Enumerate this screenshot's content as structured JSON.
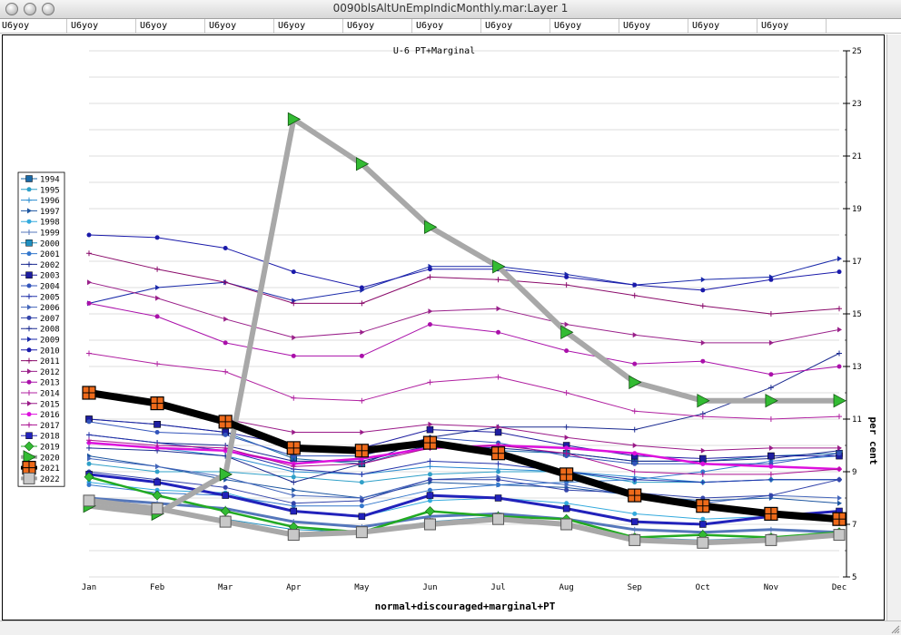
{
  "window": {
    "title": "0090blsAltUnEmpIndicMonthly.mar:Layer 1"
  },
  "tabs": [
    "U6yoy",
    "U6yoy",
    "U6yoy",
    "U6yoy",
    "U6yoy",
    "U6yoy",
    "U6yoy",
    "U6yoy",
    "U6yoy",
    "U6yoy",
    "U6yoy",
    "U6yoy"
  ],
  "chart_data": {
    "type": "line",
    "title": "U-6 PT+Marginal",
    "xlabel": "normal+discouraged+marginal+PT",
    "ylabel": "per cent",
    "categories": [
      "Jan",
      "Feb",
      "Mar",
      "Apr",
      "May",
      "Jun",
      "Jul",
      "Aug",
      "Sep",
      "Oct",
      "Nov",
      "Dec"
    ],
    "yticks": [
      5,
      7,
      9,
      11,
      13,
      15,
      17,
      19,
      21,
      23,
      25
    ],
    "ylim": [
      5,
      25
    ],
    "grid": true,
    "legend_position": "left",
    "series": [
      {
        "name": "1994",
        "color": "#1a6aa8",
        "values": [
          11.0,
          10.8,
          10.5,
          9.5,
          9.3,
          10.0,
          9.8,
          9.7,
          9.4,
          9.4,
          9.6,
          9.7
        ]
      },
      {
        "name": "1995",
        "color": "#2fa0c8",
        "values": [
          9.3,
          9.0,
          9.0,
          8.8,
          8.6,
          8.9,
          9.0,
          9.0,
          8.6,
          8.6,
          8.7,
          8.7
        ]
      },
      {
        "name": "1996",
        "color": "#2a8cd0",
        "values": [
          10.1,
          9.9,
          9.6,
          9.0,
          8.9,
          9.2,
          9.1,
          9.0,
          8.8,
          8.6,
          8.7,
          8.7
        ]
      },
      {
        "name": "1997",
        "color": "#1c55a0",
        "values": [
          9.6,
          9.2,
          8.7,
          8.3,
          8.0,
          8.6,
          8.5,
          8.4,
          8.1,
          7.9,
          8.0,
          7.8
        ]
      },
      {
        "name": "1998",
        "color": "#33aadd",
        "values": [
          8.6,
          8.3,
          8.2,
          7.5,
          7.3,
          7.9,
          8.0,
          7.8,
          7.4,
          7.2,
          7.3,
          7.3
        ]
      },
      {
        "name": "1999",
        "color": "#5577bb",
        "values": [
          8.0,
          7.8,
          7.6,
          7.1,
          6.9,
          7.3,
          7.4,
          7.2,
          6.8,
          6.7,
          6.8,
          6.7
        ]
      },
      {
        "name": "2000",
        "color": "#1f8fc0",
        "values": [
          7.9,
          7.6,
          7.2,
          6.8,
          6.7,
          7.1,
          7.3,
          7.0,
          6.5,
          6.4,
          6.5,
          6.6
        ]
      },
      {
        "name": "2001",
        "color": "#3377cc",
        "values": [
          8.5,
          8.2,
          8.1,
          7.7,
          7.7,
          8.3,
          8.5,
          8.6,
          8.7,
          9.0,
          9.4,
          9.6
        ]
      },
      {
        "name": "2002",
        "color": "#1a2a90",
        "values": [
          10.4,
          10.1,
          10.0,
          9.4,
          9.4,
          10.0,
          9.9,
          9.7,
          9.4,
          9.4,
          9.5,
          9.8
        ]
      },
      {
        "name": "2003",
        "color": "#1d1da0",
        "values": [
          11.0,
          10.8,
          10.5,
          10.0,
          9.9,
          10.6,
          10.5,
          10.0,
          9.6,
          9.5,
          9.6,
          9.6
        ]
      },
      {
        "name": "2004",
        "color": "#3355bb",
        "values": [
          10.9,
          10.5,
          10.4,
          9.6,
          9.6,
          10.3,
          10.1,
          9.6,
          9.3,
          9.3,
          9.3,
          9.7
        ]
      },
      {
        "name": "2005",
        "color": "#2233aa",
        "values": [
          10.4,
          10.1,
          9.8,
          9.1,
          8.9,
          9.4,
          9.3,
          9.0,
          8.7,
          8.6,
          8.7,
          8.7
        ]
      },
      {
        "name": "2006",
        "color": "#4466bb",
        "values": [
          9.5,
          9.2,
          8.8,
          8.1,
          8.0,
          8.7,
          8.8,
          8.5,
          8.1,
          7.8,
          8.1,
          8.0
        ]
      },
      {
        "name": "2007",
        "color": "#3344aa",
        "values": [
          9.0,
          8.7,
          8.4,
          7.8,
          7.9,
          8.7,
          8.7,
          8.3,
          8.2,
          8.0,
          8.1,
          8.7
        ]
      },
      {
        "name": "2008",
        "color": "#1a2a90",
        "values": [
          9.9,
          9.8,
          9.6,
          8.6,
          9.3,
          10.3,
          10.7,
          10.7,
          10.6,
          11.2,
          12.2,
          13.5
        ]
      },
      {
        "name": "2009",
        "color": "#1a2aaa",
        "values": [
          15.4,
          16.0,
          16.2,
          15.5,
          15.9,
          16.8,
          16.8,
          16.5,
          16.1,
          16.3,
          16.4,
          17.1
        ]
      },
      {
        "name": "2010",
        "color": "#1a1aaa",
        "values": [
          18.0,
          17.9,
          17.5,
          16.6,
          16.0,
          16.7,
          16.7,
          16.4,
          16.1,
          15.9,
          16.3,
          16.6
        ]
      },
      {
        "name": "2011",
        "color": "#8a0a6a",
        "values": [
          17.3,
          16.7,
          16.2,
          15.4,
          15.4,
          16.4,
          16.3,
          16.1,
          15.7,
          15.3,
          15.0,
          15.2
        ]
      },
      {
        "name": "2012",
        "color": "#9a208a",
        "values": [
          16.2,
          15.6,
          14.8,
          14.1,
          14.3,
          15.1,
          15.2,
          14.6,
          14.2,
          13.9,
          13.9,
          14.4
        ]
      },
      {
        "name": "2013",
        "color": "#aa10aa",
        "values": [
          15.4,
          14.9,
          13.9,
          13.4,
          13.4,
          14.6,
          14.3,
          13.6,
          13.1,
          13.2,
          12.7,
          13.0
        ]
      },
      {
        "name": "2014",
        "color": "#b020a0",
        "values": [
          13.5,
          13.1,
          12.8,
          11.8,
          11.7,
          12.4,
          12.6,
          12.0,
          11.3,
          11.1,
          11.0,
          11.1
        ]
      },
      {
        "name": "2015",
        "color": "#9a1a88",
        "values": [
          12.0,
          11.5,
          11.0,
          10.5,
          10.5,
          10.8,
          10.7,
          10.3,
          10.0,
          9.8,
          9.9,
          9.9
        ]
      },
      {
        "name": "2016",
        "color": "#dd10dd",
        "values": [
          10.1,
          9.9,
          9.8,
          9.3,
          9.5,
          9.9,
          10.0,
          9.9,
          9.7,
          9.3,
          9.2,
          9.1
        ]
      },
      {
        "name": "2017",
        "color": "#aa1090",
        "values": [
          10.2,
          10.0,
          9.9,
          9.2,
          9.3,
          9.9,
          10.0,
          9.7,
          9.0,
          8.9,
          8.9,
          9.1
        ]
      },
      {
        "name": "2018",
        "color": "#2222bb",
        "values": [
          8.9,
          8.6,
          8.1,
          7.5,
          7.3,
          8.1,
          8.0,
          7.6,
          7.1,
          7.0,
          7.3,
          7.5
        ]
      },
      {
        "name": "2019",
        "color": "#22aa22",
        "values": [
          8.8,
          8.1,
          7.5,
          6.9,
          6.7,
          7.5,
          7.3,
          7.2,
          6.5,
          6.6,
          6.5,
          6.7
        ]
      },
      {
        "name": "2020",
        "color": "#a8a8a8",
        "values": [
          7.7,
          7.4,
          8.9,
          22.4,
          20.7,
          18.3,
          16.8,
          14.3,
          12.4,
          11.7,
          11.7,
          11.7
        ]
      },
      {
        "name": "2021",
        "color": "#000000",
        "values": [
          12.0,
          11.6,
          10.9,
          9.9,
          9.8,
          10.1,
          9.7,
          8.9,
          8.1,
          7.7,
          7.4,
          7.2
        ]
      },
      {
        "name": "2022",
        "color": "#a8a8a8",
        "values": [
          7.9,
          7.6,
          7.1,
          6.6,
          6.7,
          7.0,
          7.2,
          7.0,
          6.4,
          6.3,
          6.4,
          6.6
        ]
      }
    ]
  }
}
